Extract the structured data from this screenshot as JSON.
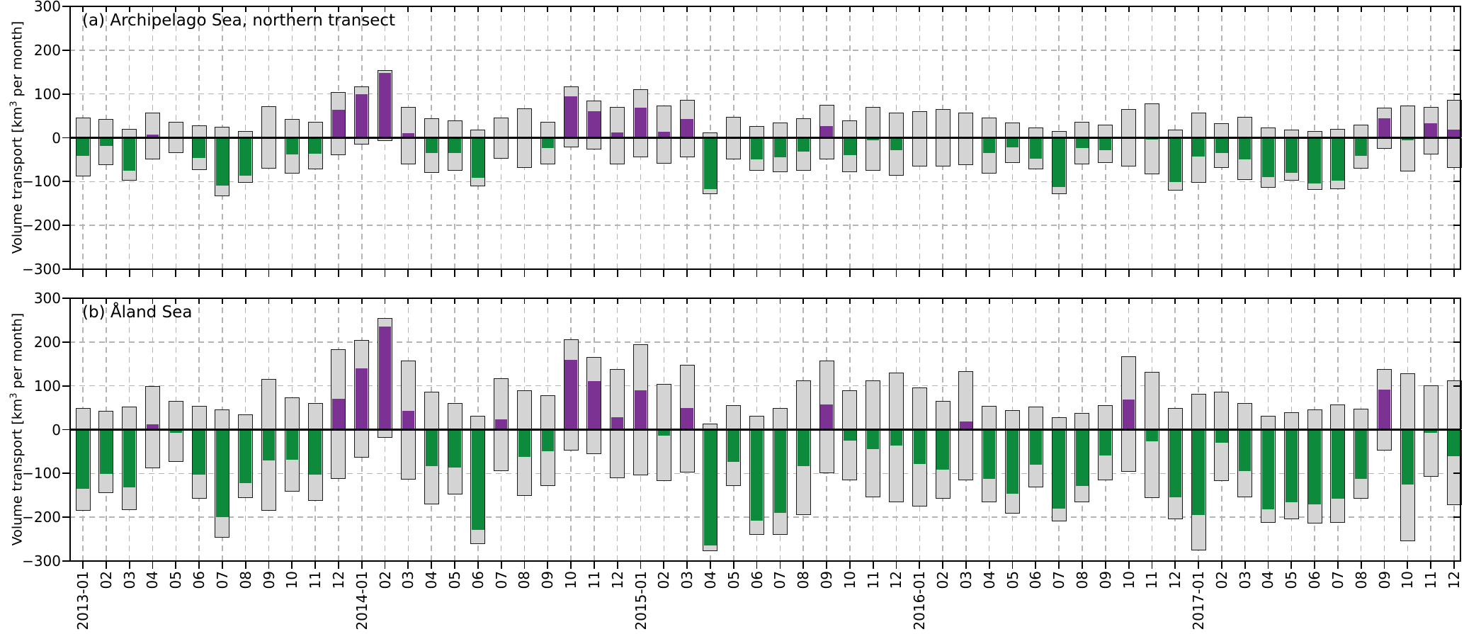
{
  "colors": {
    "bar_gray_fill": "#d4d4d4",
    "bar_outline": "#1a1a1a",
    "net_positive_purple": "#7c3292",
    "net_negative_green": "#0d8a3c",
    "gridline": "#b4b4b4",
    "axis": "#000000",
    "background": "#ffffff"
  },
  "chart_data": [
    {
      "type": "bar",
      "title": "(a) Archipelago Sea, northern transect",
      "ylabel": {
        "pre": "Volume transport [km",
        "sup": "3",
        "post": " per month]"
      },
      "ylim": [
        -300,
        300
      ],
      "ytick_values": [
        300,
        200,
        100,
        0,
        -100,
        -200,
        -300
      ],
      "ytick_labels": [
        "300",
        "200",
        "100",
        "0",
        "−100",
        "−200",
        "−300"
      ],
      "grid": true,
      "legend_position": "none",
      "x_tick_labels": [
        "2013-01",
        "02",
        "03",
        "04",
        "05",
        "06",
        "07",
        "08",
        "09",
        "10",
        "11",
        "12",
        "2014-01",
        "02",
        "03",
        "04",
        "05",
        "06",
        "07",
        "08",
        "09",
        "10",
        "11",
        "12",
        "2015-01",
        "02",
        "03",
        "04",
        "05",
        "06",
        "07",
        "08",
        "09",
        "10",
        "11",
        "12",
        "2016-01",
        "02",
        "03",
        "04",
        "05",
        "06",
        "07",
        "08",
        "09",
        "10",
        "11",
        "12",
        "2017-01",
        "02",
        "03",
        "04",
        "05",
        "06",
        "07",
        "08",
        "09",
        "10",
        "11",
        "12"
      ],
      "series": [
        {
          "name": "gross inflow (gray, positive)",
          "values": [
            46,
            43,
            20,
            58,
            37,
            28,
            25,
            15,
            72,
            43,
            37,
            105,
            117,
            155,
            70,
            45,
            40,
            18,
            46,
            67,
            37,
            117,
            85,
            70,
            111,
            74,
            87,
            12,
            47,
            26,
            34,
            44,
            76,
            39,
            71,
            57,
            61,
            65,
            58,
            46,
            35,
            24,
            15,
            37,
            30,
            65,
            78,
            19,
            58,
            33,
            47,
            24,
            19,
            15,
            20,
            30,
            69,
            73,
            70,
            87
          ]
        },
        {
          "name": "gross outflow (gray, negative)",
          "values": [
            -88,
            -62,
            -98,
            -49,
            -35,
            -74,
            -133,
            -102,
            -71,
            -82,
            -72,
            -40,
            -16,
            -8,
            -60,
            -80,
            -75,
            -110,
            -48,
            -68,
            -61,
            -22,
            -27,
            -60,
            -44,
            -59,
            -44,
            -129,
            -49,
            -75,
            -79,
            -75,
            -50,
            -78,
            -75,
            -86,
            -66,
            -66,
            -63,
            -81,
            -58,
            -72,
            -128,
            -60,
            -58,
            -66,
            -84,
            -120,
            -102,
            -68,
            -97,
            -114,
            -98,
            -119,
            -117,
            -71,
            -25,
            -77,
            -38,
            -68
          ]
        },
        {
          "name": "net transport (purple positive / green negative)",
          "values": [
            -42,
            -19,
            -76,
            8,
            3,
            -46,
            -109,
            -87,
            3,
            -38,
            -36,
            64,
            100,
            148,
            10,
            -35,
            -35,
            -92,
            -2,
            -1,
            -24,
            95,
            60,
            12,
            68,
            14,
            43,
            -117,
            -3,
            -49,
            -44,
            -31,
            27,
            -39,
            -5,
            -28,
            -3,
            -1,
            -3,
            -34,
            -22,
            -47,
            -113,
            -24,
            -28,
            -1,
            -4,
            -101,
            -43,
            -34,
            -50,
            -89,
            -80,
            -104,
            -98,
            -41,
            44,
            -5,
            33,
            19
          ]
        }
      ]
    },
    {
      "type": "bar",
      "title": "(b) Åland Sea",
      "ylabel": {
        "pre": "Volume transport [km",
        "sup": "3",
        "post": " per month]"
      },
      "ylim": [
        -300,
        300
      ],
      "ytick_values": [
        300,
        200,
        100,
        0,
        -100,
        -200,
        -300
      ],
      "ytick_labels": [
        "300",
        "200",
        "100",
        "0",
        "−100",
        "−200",
        "−300"
      ],
      "grid": true,
      "legend_position": "none",
      "x_tick_labels": [
        "2013-01",
        "02",
        "03",
        "04",
        "05",
        "06",
        "07",
        "08",
        "09",
        "10",
        "11",
        "12",
        "2014-01",
        "02",
        "03",
        "04",
        "05",
        "06",
        "07",
        "08",
        "09",
        "10",
        "11",
        "12",
        "2015-01",
        "02",
        "03",
        "04",
        "05",
        "06",
        "07",
        "08",
        "09",
        "10",
        "11",
        "12",
        "2016-01",
        "02",
        "03",
        "04",
        "05",
        "06",
        "07",
        "08",
        "09",
        "10",
        "11",
        "12",
        "2017-01",
        "02",
        "03",
        "04",
        "05",
        "06",
        "07",
        "08",
        "09",
        "10",
        "11",
        "12"
      ],
      "series": [
        {
          "name": "gross inflow (gray, positive)",
          "values": [
            50,
            43,
            53,
            100,
            65,
            54,
            46,
            34,
            115,
            73,
            60,
            183,
            205,
            255,
            157,
            86,
            60,
            32,
            118,
            90,
            78,
            207,
            165,
            138,
            195,
            105,
            148,
            14,
            55,
            32,
            50,
            112,
            157,
            90,
            112,
            130,
            96,
            66,
            134,
            54,
            45,
            52,
            28,
            38,
            56,
            167,
            132,
            50,
            81,
            86,
            61,
            31,
            39,
            46,
            57,
            48,
            138,
            128,
            101,
            113
          ]
        },
        {
          "name": "gross outflow (gray, negative)",
          "values": [
            -185,
            -144,
            -184,
            -88,
            -73,
            -157,
            -246,
            -156,
            -185,
            -141,
            -163,
            -112,
            -64,
            -19,
            -114,
            -170,
            -148,
            -261,
            -94,
            -152,
            -128,
            -48,
            -55,
            -110,
            -105,
            -118,
            -98,
            -278,
            -128,
            -240,
            -240,
            -195,
            -100,
            -115,
            -155,
            -166,
            -175,
            -158,
            -116,
            -166,
            -192,
            -132,
            -209,
            -166,
            -115,
            -97,
            -156,
            -205,
            -276,
            -117,
            -155,
            -213,
            -205,
            -215,
            -213,
            -158,
            -47,
            -254,
            -108,
            -172
          ]
        },
        {
          "name": "net transport (purple positive / green negative)",
          "values": [
            -135,
            -101,
            -131,
            12,
            -8,
            -103,
            -200,
            -122,
            -70,
            -68,
            -103,
            71,
            140,
            236,
            43,
            -84,
            -87,
            -229,
            24,
            -62,
            -50,
            159,
            110,
            28,
            90,
            -13,
            50,
            -264,
            -73,
            -208,
            -190,
            -83,
            57,
            -25,
            -44,
            -36,
            -79,
            -92,
            18,
            -112,
            -147,
            -80,
            -181,
            -128,
            -59,
            68,
            -26,
            -154,
            -195,
            -30,
            -95,
            -182,
            -166,
            -170,
            -158,
            -112,
            91,
            -126,
            -7,
            -60
          ]
        }
      ]
    }
  ]
}
